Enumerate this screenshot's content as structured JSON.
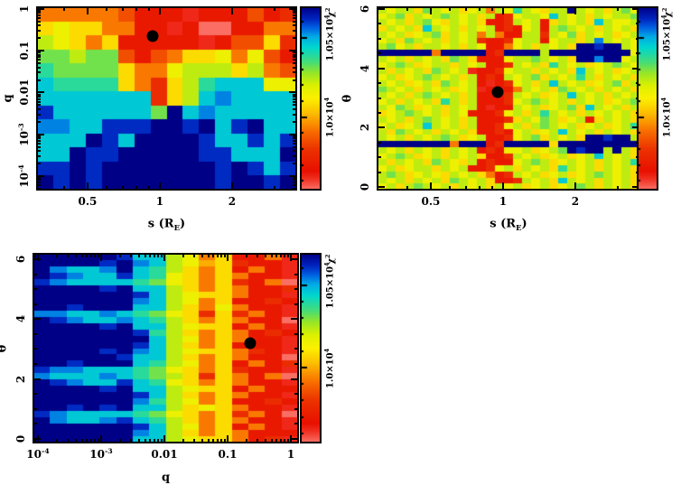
{
  "figure": {
    "background": "#ffffff",
    "marker_color": "#000000",
    "description_labels": {
      "chi2": "χ^{2}"
    }
  },
  "value_encoding": {
    "chars": "0123456789abcdef",
    "chi2_min": 9550,
    "chi2_max": 10690
  },
  "colormap": {
    "direction": "low-chi2-red to high-chi2-navy",
    "stops": [
      [
        0.0,
        [
          250,
          110,
          100
        ]
      ],
      [
        0.06,
        [
          240,
          45,
          30
        ]
      ],
      [
        0.1,
        [
          232,
          16,
          0
        ]
      ],
      [
        0.22,
        [
          236,
          50,
          0
        ]
      ],
      [
        0.32,
        [
          248,
          110,
          0
        ]
      ],
      [
        0.42,
        [
          252,
          190,
          0
        ]
      ],
      [
        0.5,
        [
          252,
          240,
          0
        ]
      ],
      [
        0.57,
        [
          220,
          240,
          0
        ]
      ],
      [
        0.64,
        [
          150,
          230,
          40
        ]
      ],
      [
        0.7,
        [
          70,
          220,
          120
        ]
      ],
      [
        0.78,
        [
          0,
          215,
          205
        ]
      ],
      [
        0.84,
        [
          0,
          170,
          230
        ]
      ],
      [
        0.89,
        [
          0,
          95,
          225
        ]
      ],
      [
        0.94,
        [
          0,
          35,
          190
        ]
      ],
      [
        1.0,
        [
          0,
          0,
          135
        ]
      ]
    ]
  },
  "chart_data": [
    {
      "id": "chi2-map-q-vs-s",
      "type": "heatmap",
      "xlabel": "s (R_{E})",
      "ylabel": "q",
      "x_axis": {
        "scale": "log",
        "min": 0.308,
        "max": 3.7,
        "major_ticks": [
          0.5,
          1,
          2
        ],
        "major_labels": [
          "0.5",
          "1",
          "2"
        ]
      },
      "y_axis": {
        "scale": "log",
        "min": 4.7e-05,
        "max": 1.105,
        "major_ticks": [
          1,
          0.1,
          0.01,
          0.001,
          0.0001
        ],
        "major_labels": [
          "1",
          "0.1",
          "0.01",
          "10^{-3}",
          "10^{-4}"
        ]
      },
      "colorbar": {
        "title": "χ^{2}",
        "min": 9550,
        "max": 10690,
        "major_ticks": [
          10000,
          10500
        ],
        "major_labels": [
          "1.0×10^{4}",
          "1.05×10^{4}"
        ],
        "minor_step": 100
      },
      "best_fit": {
        "x": 0.93,
        "y": 0.22
      },
      "grid": [
        "5555542221222423",
        "7877552212002255",
        "9875722222124473",
        "aa9aa42457785842",
        "baaaa75589997954",
        "cbbbb75379bccc88",
        "ccccccc379cdcccc",
        "eccccccafcdccccc",
        "ddcceeeffefcefcc",
        "cccfecffffeccece",
        "ccfeefffffeecccf",
        "eefefffffffefece",
        "fefefffffffeffef"
      ]
    },
    {
      "id": "chi2-map-theta-vs-s",
      "type": "heatmap",
      "xlabel": "s (R_{E})",
      "ylabel": "θ",
      "x_axis": {
        "scale": "log",
        "min": 0.3,
        "max": 3.7,
        "major_ticks": [
          0.5,
          1,
          2
        ],
        "major_labels": [
          "0.5",
          "1",
          "2"
        ]
      },
      "y_axis": {
        "scale": "linear",
        "min": -0.09,
        "max": 6.06,
        "major_ticks": [
          0,
          2,
          4,
          6
        ],
        "major_labels": [
          "0",
          "2",
          "4",
          "6"
        ],
        "minor_step": 0.5
      },
      "colorbar": {
        "title": "χ^{2}",
        "min": 9550,
        "max": 10690,
        "major_ticks": [
          10000,
          10500
        ],
        "major_labels": [
          "1.0×10^{4}",
          "1.05×10^{4}"
        ],
        "minor_step": 100
      },
      "best_fit": {
        "x": 0.95,
        "y": 3.2
      },
      "grid": [
        "98997a989789598b98799f98979a8",
        "89a7989a98979238998c98979899a",
        "98979a879897223989279897c9889",
        "79897c98979892328929a98979897",
        "989789a79895952299398a7989789",
        "897a98979893223899289979d9898",
        "9a89799897982258979897ffeff98",
        "ffffff5fffff23ffff9fffffffff8",
        "98979897a97222899a9897ffdff89",
        "89a9789979892239897b989789a98",
        "979897a989122389979897c989789",
        "89789a98979232989a7989b979897",
        "9897897a98921238979c989789a79",
        "a9897989789122259897a98979897",
        "98979a989792223989789c9897989",
        "8979897b979222389a9897989789a",
        "98a978979892122989789a7c98979",
        "789a98979822238979b9897989897",
        "98979a989792223798a9789279897",
        "89789c989792238979a989789789b",
        "97a98979897223289789c98979897",
        "9897989a978922389a79897ffeff9",
        "ffffffff5fff23fffff7fffffffff",
        "98979897989232889789afeff9f97",
        "89a978979897223989789789c9897",
        "979897a9879232289a9789897989b",
        "89789979892238979897b98979897",
        "9a9789879897523989789789a9897",
        "98979897a98972239897c98979897",
        "8979a98979897989789789a979897"
      ]
    },
    {
      "id": "chi2-map-theta-vs-q",
      "type": "heatmap",
      "xlabel": "q",
      "ylabel": "θ",
      "x_axis": {
        "scale": "log",
        "min": 8.5e-05,
        "max": 1.3,
        "major_ticks": [
          0.0001,
          0.001,
          0.01,
          0.1,
          1
        ],
        "major_labels": [
          "10^{-4}",
          "10^{-3}",
          "0.01",
          "0.1",
          "1"
        ]
      },
      "y_axis": {
        "scale": "linear",
        "min": -0.12,
        "max": 6.18,
        "major_ticks": [
          0,
          2,
          4,
          6
        ],
        "major_labels": [
          "0",
          "2",
          "4",
          "6"
        ],
        "minor_step": 0.5
      },
      "colorbar": {
        "title": "χ^{2}",
        "min": 9550,
        "max": 10690,
        "major_ticks": [
          10000,
          10500
        ],
        "major_labels": [
          "1.0×10^{4}",
          "1.05×10^{4}"
        ],
        "minor_step": 100
      },
      "best_fit": {
        "x": 0.23,
        "y": 3.2
      },
      "grid": [
        "fffffecc98572251",
        "ffffefdc98673221",
        "fdccdfcb97572521",
        "fedccecb87575221",
        "edccccba87573250",
        "ffffefcc97575223",
        "ffffffec98775221",
        "ffffffdc98572232",
        "ffefffcc97585221",
        "ddccdcba87373521",
        "fedccdcb97575220",
        "ffffefcc98772521",
        "ffffffeb97575232",
        "fffffffc98575221",
        "ffffffec97572221",
        "ffffefdc98775321",
        "fffffecc97575220",
        "ffefffcb98572523",
        "eddcccba87573221",
        "dcccdcba97375250",
        "fedccecb87575221",
        "ffffefcc98772522",
        "ffffffec97575221",
        "ffffffdb98572232",
        "ffefefcc97875221",
        "edccccba87573520",
        "fdccdecb97575221",
        "ffffffec98572521",
        "ffffffdc97575222",
        "ffffffcc98775231"
      ]
    }
  ]
}
